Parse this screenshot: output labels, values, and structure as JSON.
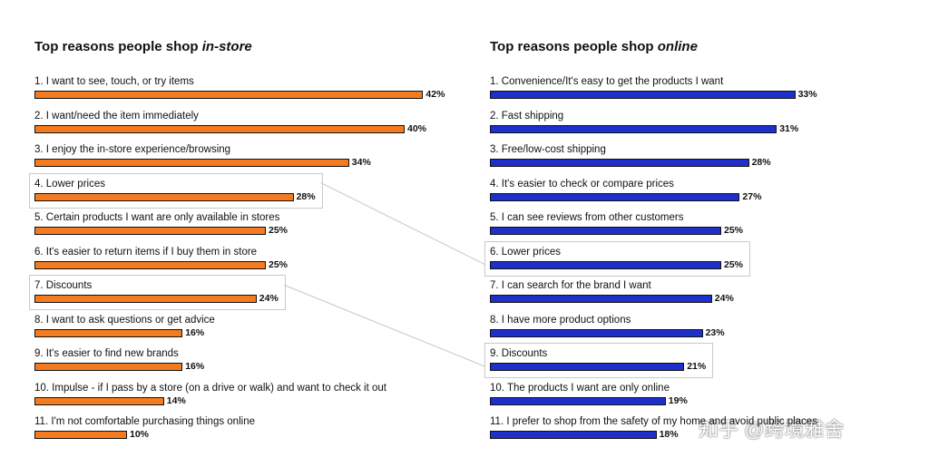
{
  "colors": {
    "instore": "#F47B20",
    "online": "#1F2FCC",
    "link": "#c7c7c7"
  },
  "watermark": "知乎 @跨境雅舍",
  "chart_data": [
    {
      "type": "bar",
      "orientation": "horizontal",
      "title_prefix": "Top reasons people shop ",
      "title_emphasis": "in-store",
      "xlim": [
        0,
        100
      ],
      "categories": [
        "1. I want to see, touch, or try items",
        "2. I want/need the item immediately",
        "3. I enjoy the in-store experience/browsing",
        "4. Lower prices",
        "5. Certain products I want are only available in stores",
        "6. It's easier to return items if I buy them in store",
        "7. Discounts",
        "8. I want to ask questions or get advice",
        "9. It's easier to find new brands",
        "10. Impulse - if I pass by a store (on a drive or walk) and want to check it out",
        "11. I'm not comfortable purchasing things online"
      ],
      "values": [
        42,
        40,
        34,
        28,
        25,
        25,
        24,
        16,
        16,
        14,
        10
      ],
      "value_labels": [
        "42%",
        "40%",
        "34%",
        "28%",
        "25%",
        "25%",
        "24%",
        "16%",
        "16%",
        "14%",
        "10%"
      ],
      "highlighted": [
        3,
        6
      ]
    },
    {
      "type": "bar",
      "orientation": "horizontal",
      "title_prefix": "Top reasons people shop ",
      "title_emphasis": "online",
      "xlim": [
        0,
        100
      ],
      "categories": [
        "1. Convenience/It's easy to get the products I want",
        "2. Fast shipping",
        "3. Free/low-cost shipping",
        "4. It's easier to check or compare prices",
        "5. I can see reviews from other customers",
        "6. Lower prices",
        "7. I can search for the brand I want",
        "8. I have more product options",
        "9. Discounts",
        "10. The products I want are only online",
        "11. I prefer to shop from the safety of my home and avoid public places"
      ],
      "values": [
        33,
        31,
        28,
        27,
        25,
        25,
        24,
        23,
        21,
        19,
        18
      ],
      "value_labels": [
        "33%",
        "31%",
        "28%",
        "27%",
        "25%",
        "25%",
        "24%",
        "23%",
        "21%",
        "19%",
        "18%"
      ],
      "highlighted": [
        5,
        8
      ]
    }
  ],
  "links": [
    {
      "from_chart": 0,
      "from_index": 3,
      "to_chart": 1,
      "to_index": 5
    },
    {
      "from_chart": 0,
      "from_index": 6,
      "to_chart": 1,
      "to_index": 8
    }
  ]
}
